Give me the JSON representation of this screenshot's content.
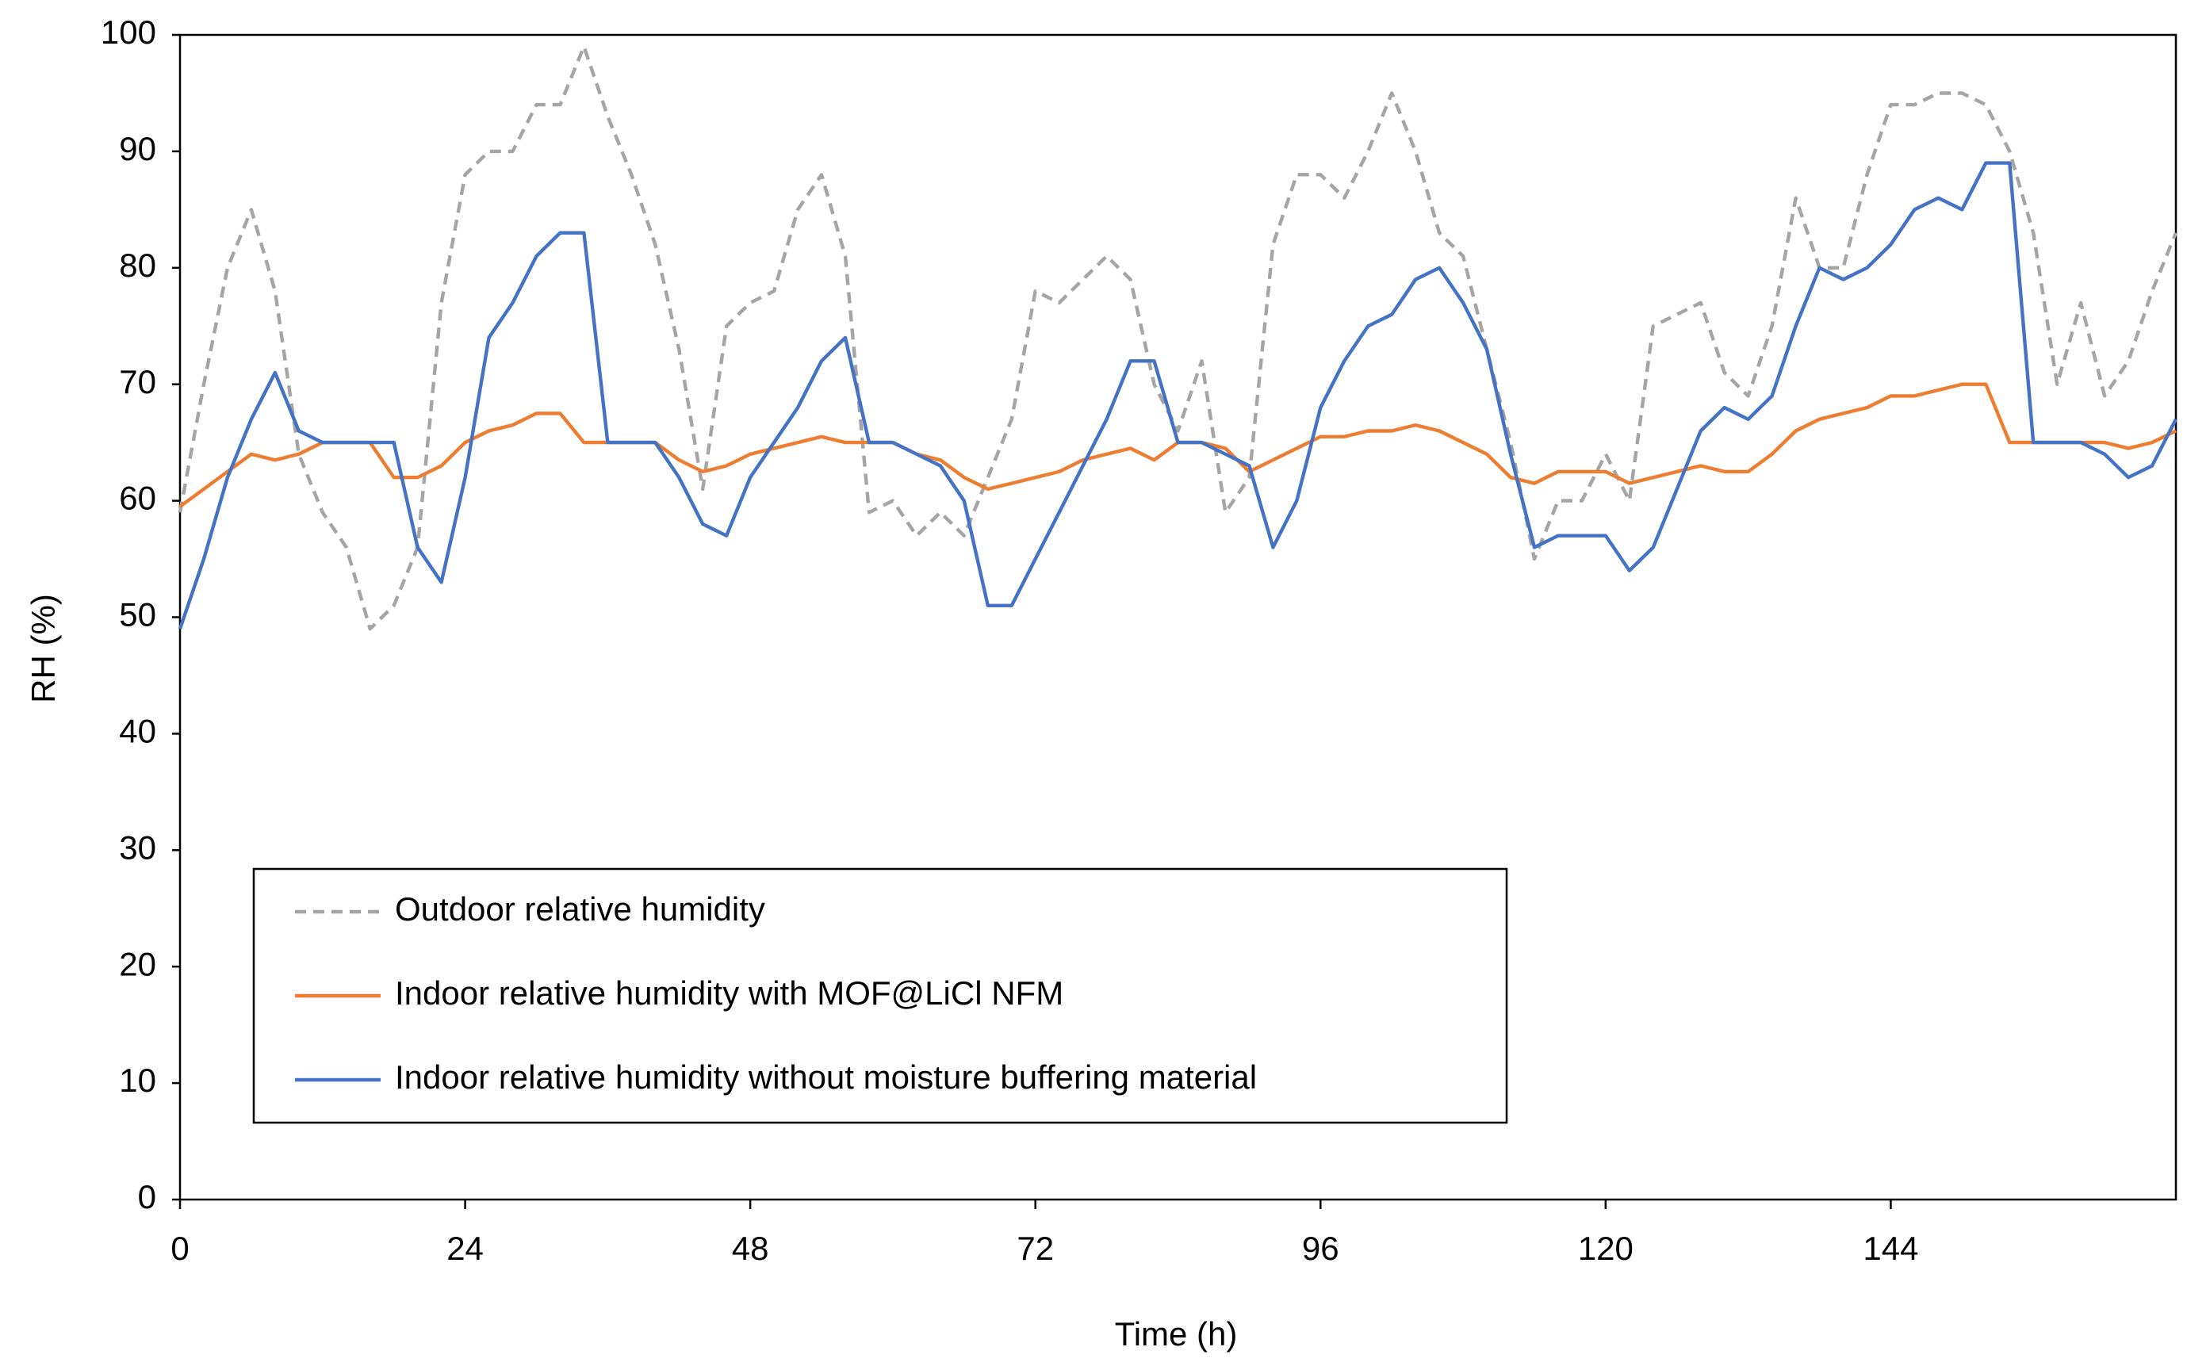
{
  "chart_data": {
    "type": "line",
    "xlabel": "Time (h)",
    "ylabel": "RH (%)",
    "x": [
      0,
      2,
      4,
      6,
      8,
      10,
      12,
      14,
      16,
      18,
      20,
      22,
      24,
      26,
      28,
      30,
      32,
      34,
      36,
      38,
      40,
      42,
      44,
      46,
      48,
      50,
      52,
      54,
      56,
      58,
      60,
      62,
      64,
      66,
      68,
      70,
      72,
      74,
      76,
      78,
      80,
      82,
      84,
      86,
      88,
      90,
      92,
      94,
      96,
      98,
      100,
      102,
      104,
      106,
      108,
      110,
      112,
      114,
      116,
      118,
      120,
      122,
      124,
      126,
      128,
      130,
      132,
      134,
      136,
      138,
      140,
      142,
      144,
      146,
      148,
      150,
      152,
      154,
      156,
      158,
      160,
      162,
      164,
      166,
      168
    ],
    "series": [
      {
        "name": "Outdoor relative humidity",
        "color": "#a5a5a5",
        "dash": true,
        "values": [
          59,
          70,
          80,
          85,
          78,
          64,
          59,
          56,
          49,
          51,
          56,
          77,
          88,
          90,
          90,
          94,
          94,
          99,
          93,
          88,
          82,
          73,
          61,
          75,
          77,
          78,
          85,
          88,
          81,
          59,
          60,
          57,
          59,
          57,
          62,
          67,
          78,
          77,
          79,
          81,
          79,
          70,
          66,
          72,
          59,
          62,
          82,
          88,
          88,
          86,
          90,
          95,
          90,
          83,
          81,
          73,
          65,
          55,
          60,
          60,
          64,
          60,
          75,
          76,
          77,
          71,
          69,
          75,
          86,
          80,
          80,
          88,
          94,
          94,
          95,
          95,
          94,
          90,
          83,
          70,
          77,
          69,
          72,
          78,
          83
        ]
      },
      {
        "name": "Indoor relative humidity with MOF@LiCl NFM",
        "color": "#ed7d31",
        "dash": false,
        "values": [
          59.5,
          61,
          62.5,
          64,
          63.5,
          64,
          65,
          65,
          65,
          62,
          62,
          63,
          65,
          66,
          66.5,
          67.5,
          67.5,
          65,
          65,
          65,
          65,
          63.5,
          62.5,
          63,
          64,
          64.5,
          65,
          65.5,
          65,
          65,
          65,
          64,
          63.5,
          62,
          61,
          61.5,
          62,
          62.5,
          63.5,
          64,
          64.5,
          63.5,
          65,
          65,
          64.5,
          62.5,
          63.5,
          64.5,
          65.5,
          65.5,
          66,
          66,
          66.5,
          66,
          65,
          64,
          62,
          61.5,
          62.5,
          62.5,
          62.5,
          61.5,
          62,
          62.5,
          63,
          62.5,
          62.5,
          64,
          66,
          67,
          67.5,
          68,
          69,
          69,
          69.5,
          70,
          70,
          65,
          65,
          65,
          65,
          65,
          64.5,
          65,
          66
        ]
      },
      {
        "name": "Indoor relative humidity without moisture buffering material",
        "color": "#4472c4",
        "dash": false,
        "values": [
          49,
          55,
          62,
          67,
          71,
          66,
          65,
          65,
          65,
          65,
          56,
          53,
          62,
          74,
          77,
          81,
          83,
          83,
          65,
          65,
          65,
          62,
          58,
          57,
          62,
          65,
          68,
          72,
          74,
          65,
          65,
          64,
          63,
          60,
          51,
          51,
          55,
          59,
          63,
          67,
          72,
          72,
          65,
          65,
          64,
          63,
          56,
          60,
          68,
          72,
          75,
          76,
          79,
          80,
          77,
          73,
          64,
          56,
          57,
          57,
          57,
          54,
          56,
          61,
          66,
          68,
          67,
          69,
          75,
          80,
          79,
          80,
          82,
          85,
          86,
          85,
          89,
          89,
          65,
          65,
          65,
          64,
          62,
          63,
          67
        ]
      }
    ],
    "xlim": [
      0,
      168
    ],
    "xticks": [
      0,
      24,
      48,
      72,
      96,
      120,
      144
    ],
    "ylim": [
      0,
      100
    ],
    "yticks": [
      0,
      10,
      20,
      30,
      40,
      50,
      60,
      70,
      80,
      90,
      100
    ],
    "grid": false,
    "legend": "lower left"
  }
}
